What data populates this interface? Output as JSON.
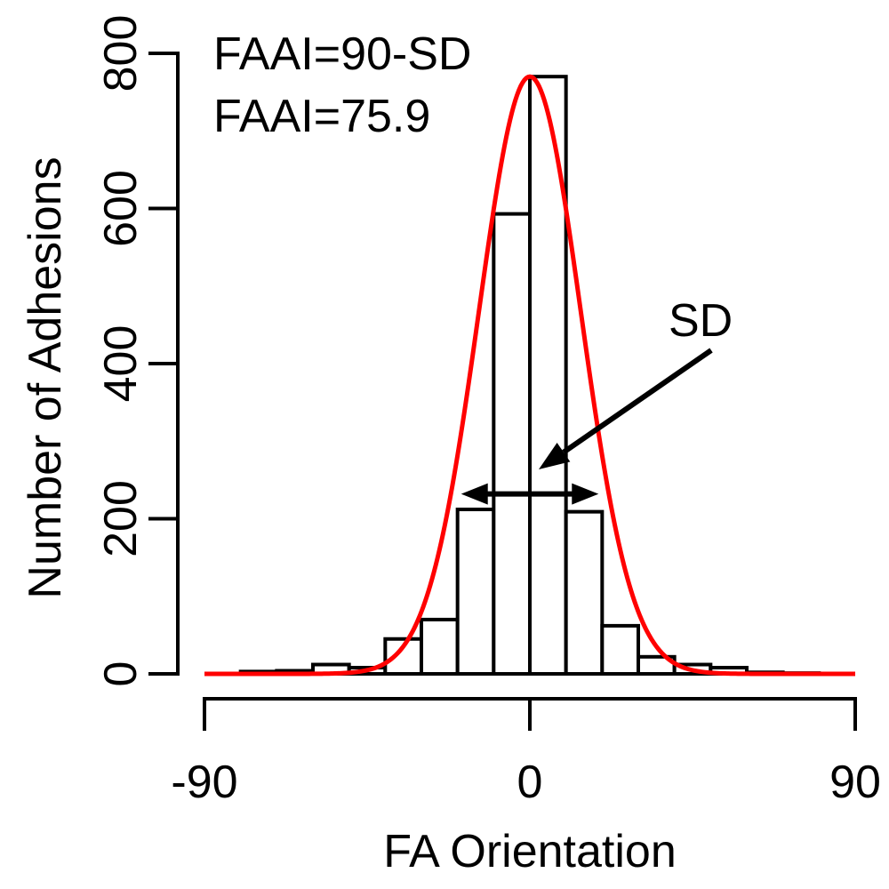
{
  "chart_data": {
    "type": "bar",
    "xlabel": "FA Orientation",
    "ylabel": "Number of Adhesions",
    "xlim": [
      -90,
      90
    ],
    "ylim": [
      0,
      800
    ],
    "xticks": [
      "-90",
      "0",
      "90"
    ],
    "yticks": [
      "0",
      "200",
      "400",
      "600",
      "800"
    ],
    "bin_width": 10,
    "bins": [
      {
        "x0": -80,
        "x1": -70,
        "value": 3
      },
      {
        "x0": -70,
        "x1": -60,
        "value": 4
      },
      {
        "x0": -60,
        "x1": -50,
        "value": 12
      },
      {
        "x0": -50,
        "x1": -40,
        "value": 8
      },
      {
        "x0": -40,
        "x1": -30,
        "value": 45
      },
      {
        "x0": -30,
        "x1": -20,
        "value": 70
      },
      {
        "x0": -20,
        "x1": -10,
        "value": 212
      },
      {
        "x0": -10,
        "x1": 0,
        "value": 593
      },
      {
        "x0": 0,
        "x1": 10,
        "value": 770
      },
      {
        "x0": 10,
        "x1": 20,
        "value": 209
      },
      {
        "x0": 20,
        "x1": 30,
        "value": 62
      },
      {
        "x0": 30,
        "x1": 40,
        "value": 22
      },
      {
        "x0": 40,
        "x1": 50,
        "value": 12
      },
      {
        "x0": 50,
        "x1": 60,
        "value": 8
      },
      {
        "x0": 60,
        "x1": 70,
        "value": 2
      },
      {
        "x0": 70,
        "x1": 80,
        "value": 1
      }
    ],
    "fit_curve": {
      "type": "gaussian",
      "mean": 0,
      "sd": 14.1,
      "peak": 770,
      "color": "#ff0000"
    },
    "sd_span": [
      -19,
      19
    ],
    "sd_level": 232,
    "annotations": {
      "line1": "FAAI=90-SD",
      "line2": "FAAI=75.9",
      "sd_label": "SD"
    },
    "grid": false
  }
}
